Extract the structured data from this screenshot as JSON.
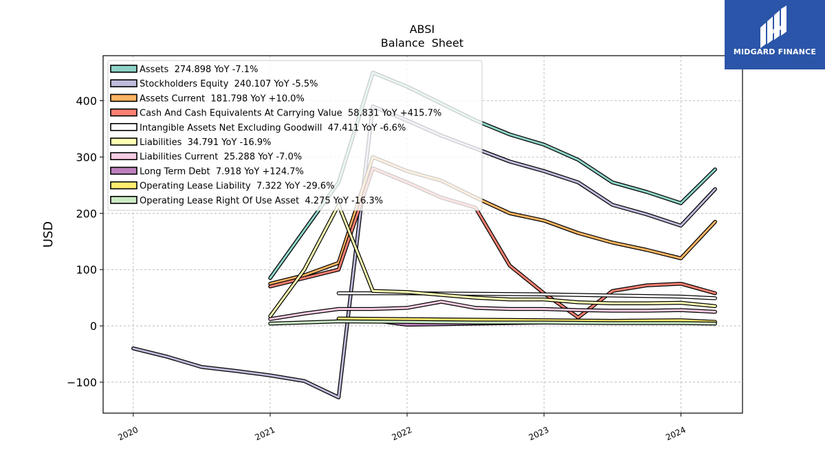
{
  "brand": {
    "name": "MIDGARD FINANCE",
    "bg_color": "#2b55a8",
    "icon": "midgard-logo-icon"
  },
  "chart_data": {
    "type": "line",
    "title": "ABSI",
    "subtitle": "Balance  Sheet",
    "ylabel": "USD",
    "xlabel": "",
    "ylim": [
      -155,
      480
    ],
    "xlim": [
      2019.78,
      2024.45
    ],
    "yticks": [
      -100,
      0,
      100,
      200,
      300,
      400
    ],
    "ytick_labels": [
      "−100",
      "0",
      "100",
      "200",
      "300",
      "400"
    ],
    "xticks": [
      2020,
      2021,
      2022,
      2023,
      2024
    ],
    "xtick_labels": [
      "2020",
      "2021",
      "2022",
      "2023",
      "2024"
    ],
    "grid": true,
    "legend_position": "upper-left",
    "series": [
      {
        "name": "Assets",
        "label": "Assets  274.898 YoY -7.1%",
        "color": "#8dd3c7",
        "points": [
          [
            2021.0,
            85
          ],
          [
            2021.25,
            170
          ],
          [
            2021.5,
            255
          ],
          [
            2021.75,
            450
          ],
          [
            2022.0,
            425
          ],
          [
            2022.25,
            395
          ],
          [
            2022.5,
            365
          ],
          [
            2022.75,
            340
          ],
          [
            2023.0,
            322
          ],
          [
            2023.25,
            295
          ],
          [
            2023.5,
            255
          ],
          [
            2023.75,
            238
          ],
          [
            2024.0,
            218
          ],
          [
            2024.25,
            278
          ]
        ]
      },
      {
        "name": "Stockholders Equity",
        "label": "Stockholders Equity  240.107 YoY -5.5%",
        "color": "#bebada",
        "points": [
          [
            2020.0,
            -40
          ],
          [
            2020.25,
            -55
          ],
          [
            2020.5,
            -73
          ],
          [
            2020.75,
            -80
          ],
          [
            2021.0,
            -88
          ],
          [
            2021.25,
            -98
          ],
          [
            2021.5,
            -127
          ],
          [
            2021.75,
            390
          ],
          [
            2022.0,
            365
          ],
          [
            2022.25,
            338
          ],
          [
            2022.5,
            315
          ],
          [
            2022.75,
            292
          ],
          [
            2023.0,
            275
          ],
          [
            2023.25,
            255
          ],
          [
            2023.5,
            215
          ],
          [
            2023.75,
            198
          ],
          [
            2024.0,
            178
          ],
          [
            2024.25,
            243
          ]
        ]
      },
      {
        "name": "Assets Current",
        "label": "Assets Current  181.798 YoY +10.0%",
        "color": "#fdb462",
        "points": [
          [
            2021.0,
            75
          ],
          [
            2021.25,
            90
          ],
          [
            2021.5,
            112
          ],
          [
            2021.75,
            300
          ],
          [
            2022.0,
            275
          ],
          [
            2022.25,
            258
          ],
          [
            2022.5,
            228
          ],
          [
            2022.75,
            200
          ],
          [
            2023.0,
            187
          ],
          [
            2023.25,
            165
          ],
          [
            2023.5,
            148
          ],
          [
            2023.75,
            135
          ],
          [
            2024.0,
            120
          ],
          [
            2024.25,
            185
          ]
        ]
      },
      {
        "name": "Cash And Cash Equivalents At Carrying Value",
        "label": "Cash And Cash Equivalents At Carrying Value  58.831 YoY +415.7%",
        "color": "#fb8072",
        "points": [
          [
            2021.0,
            70
          ],
          [
            2021.25,
            85
          ],
          [
            2021.5,
            100
          ],
          [
            2021.75,
            280
          ],
          [
            2022.0,
            255
          ],
          [
            2022.25,
            228
          ],
          [
            2022.5,
            210
          ],
          [
            2022.75,
            107
          ],
          [
            2023.0,
            58
          ],
          [
            2023.25,
            15
          ],
          [
            2023.5,
            62
          ],
          [
            2023.75,
            72
          ],
          [
            2024.0,
            75
          ],
          [
            2024.25,
            58
          ]
        ]
      },
      {
        "name": "Intangible Assets Net Excluding Goodwill",
        "label": "Intangible Assets Net Excluding Goodwill  47.411 YoY -6.6%",
        "color": "#ffffff",
        "points": [
          [
            2021.5,
            58
          ],
          [
            2022.0,
            58
          ],
          [
            2022.5,
            57
          ],
          [
            2023.0,
            56
          ],
          [
            2023.5,
            54
          ],
          [
            2024.0,
            52
          ],
          [
            2024.25,
            49
          ]
        ]
      },
      {
        "name": "Liabilities",
        "label": "Liabilities  34.791 YoY -16.9%",
        "color": "#ffffb3",
        "points": [
          [
            2021.0,
            17
          ],
          [
            2021.25,
            100
          ],
          [
            2021.5,
            215
          ],
          [
            2021.75,
            62
          ],
          [
            2022.0,
            60
          ],
          [
            2022.25,
            55
          ],
          [
            2022.5,
            50
          ],
          [
            2022.75,
            47
          ],
          [
            2023.0,
            47
          ],
          [
            2023.25,
            42
          ],
          [
            2023.5,
            40
          ],
          [
            2023.75,
            40
          ],
          [
            2024.0,
            41
          ],
          [
            2024.25,
            35
          ]
        ]
      },
      {
        "name": "Liabilities Current",
        "label": "Liabilities Current  25.288 YoY -7.0%",
        "color": "#fccde5",
        "points": [
          [
            2021.0,
            12
          ],
          [
            2021.25,
            22
          ],
          [
            2021.5,
            30
          ],
          [
            2021.75,
            30
          ],
          [
            2022.0,
            32
          ],
          [
            2022.25,
            43
          ],
          [
            2022.5,
            32
          ],
          [
            2022.75,
            30
          ],
          [
            2023.0,
            30
          ],
          [
            2023.25,
            28
          ],
          [
            2023.5,
            27
          ],
          [
            2023.75,
            27
          ],
          [
            2024.0,
            28
          ],
          [
            2024.25,
            25
          ]
        ]
      },
      {
        "name": "Long Term Debt",
        "label": "Long Term Debt  7.918 YoY +124.7%",
        "color": "#bc80bd",
        "points": [
          [
            2021.5,
            12
          ],
          [
            2021.75,
            10
          ],
          [
            2022.0,
            2
          ],
          [
            2022.5,
            4
          ],
          [
            2023.0,
            6
          ],
          [
            2023.5,
            7
          ],
          [
            2024.0,
            9
          ]
        ]
      },
      {
        "name": "Operating Lease Liability",
        "label": "Operating Lease Liability  7.322 YoY -29.6%",
        "color": "#ffed6f",
        "points": [
          [
            2021.5,
            13
          ],
          [
            2022.0,
            12
          ],
          [
            2022.5,
            11
          ],
          [
            2023.0,
            10
          ],
          [
            2023.5,
            9
          ],
          [
            2024.0,
            10
          ],
          [
            2024.25,
            7
          ]
        ]
      },
      {
        "name": "Operating Lease Right Of Use Asset",
        "label": "Operating Lease Right Of Use Asset  4.275 YoY -16.3%",
        "color": "#ccebc5",
        "points": [
          [
            2021.0,
            4
          ],
          [
            2021.5,
            8
          ],
          [
            2022.0,
            7
          ],
          [
            2022.5,
            6
          ],
          [
            2023.0,
            6
          ],
          [
            2023.5,
            5
          ],
          [
            2024.0,
            5
          ],
          [
            2024.25,
            4
          ]
        ]
      }
    ]
  }
}
